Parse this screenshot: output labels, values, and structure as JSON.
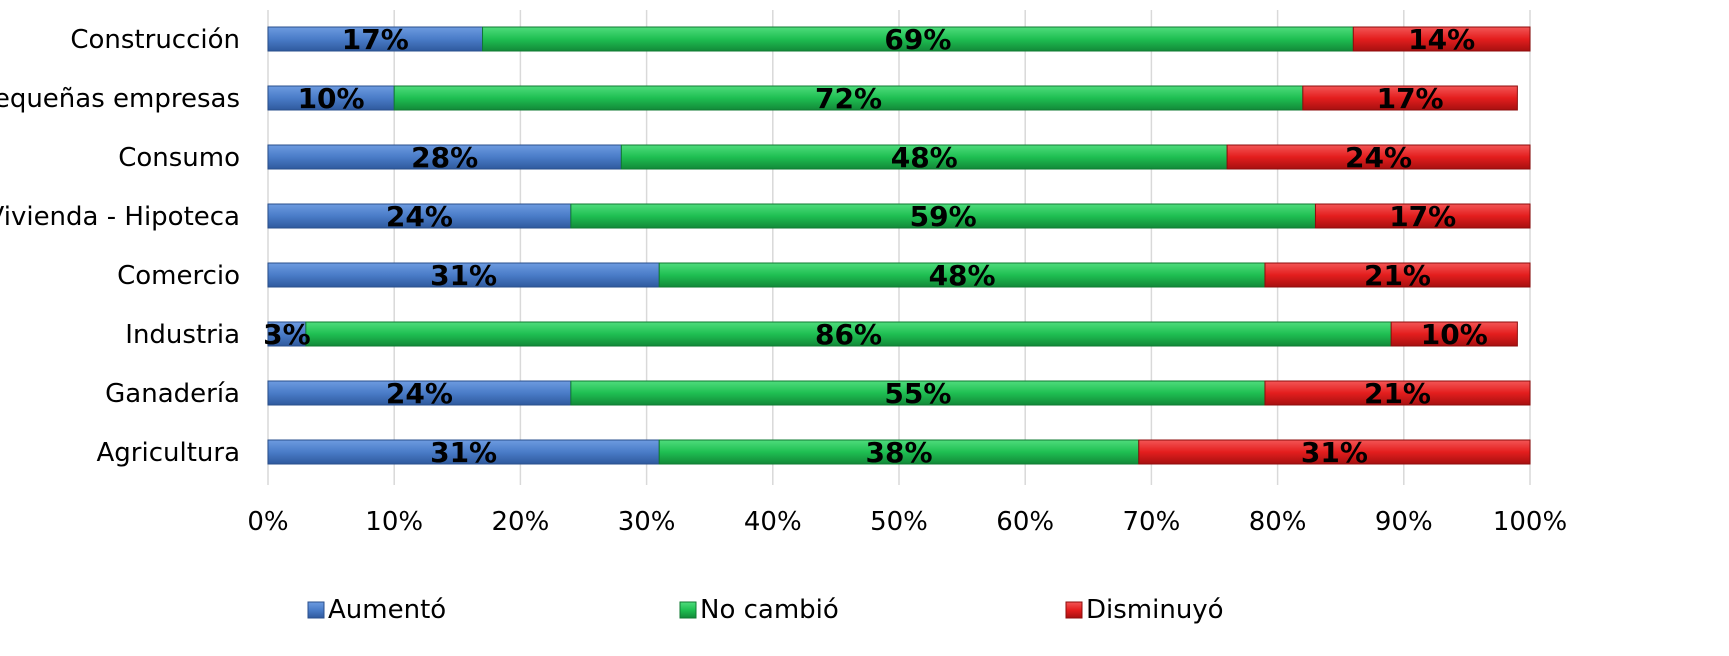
{
  "chart_data": {
    "type": "bar",
    "orientation": "horizontal",
    "stacked": true,
    "categories": [
      "Construcción",
      "Pequeñas empresas",
      "Consumo",
      "Vivienda - Hipoteca",
      "Comercio",
      "Industria",
      "Ganadería",
      "Agricultura"
    ],
    "series": [
      {
        "name": "Aumentó",
        "values": [
          17,
          10,
          28,
          24,
          31,
          3,
          24,
          31
        ],
        "color": "#4a7cc8"
      },
      {
        "name": "No cambió",
        "values": [
          69,
          72,
          48,
          59,
          48,
          86,
          55,
          38
        ],
        "color": "#1fbf52"
      },
      {
        "name": "Disminuyó",
        "values": [
          14,
          17,
          24,
          17,
          21,
          10,
          21,
          31
        ],
        "color": "#e41e1e"
      }
    ],
    "data_labels": [
      [
        "17%",
        "10%",
        "28%",
        "24%",
        "31%",
        "3%",
        "24%",
        "31%"
      ],
      [
        "69%",
        "72%",
        "48%",
        "59%",
        "48%",
        "86%",
        "55%",
        "38%"
      ],
      [
        "14%",
        "17%",
        "24%",
        "17%",
        "21%",
        "10%",
        "21%",
        "31%"
      ]
    ],
    "xlim": [
      0,
      100
    ],
    "xticks": [
      "0%",
      "10%",
      "20%",
      "30%",
      "40%",
      "50%",
      "60%",
      "70%",
      "80%",
      "90%",
      "100%"
    ],
    "grid": true,
    "legend_position": "bottom"
  }
}
